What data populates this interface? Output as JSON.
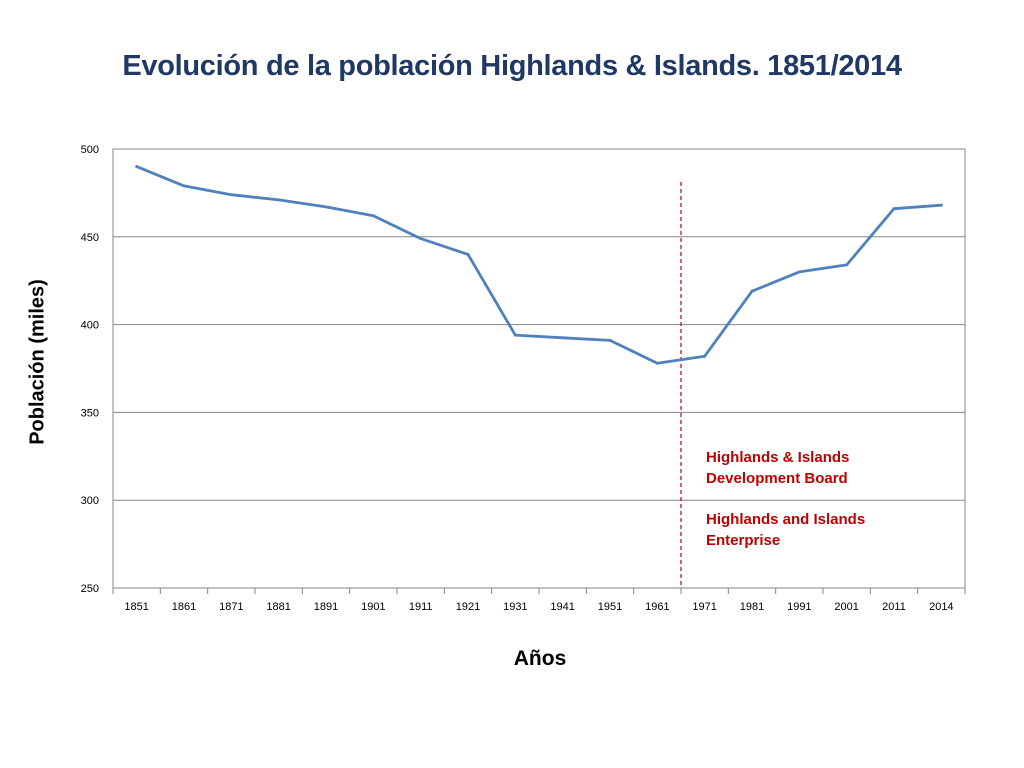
{
  "chart_data": {
    "type": "line",
    "title": "Evolución de la población Highlands & Islands. 1851/2014",
    "xlabel": "Años",
    "ylabel": "Población (miles)",
    "categories": [
      "1851",
      "1861",
      "1871",
      "1881",
      "1891",
      "1901",
      "1911",
      "1921",
      "1931",
      "1941",
      "1951",
      "1961",
      "1971",
      "1981",
      "1991",
      "2001",
      "2011",
      "2014"
    ],
    "series": [
      {
        "values": [
          490,
          479,
          474,
          471,
          467,
          462,
          449,
          440,
          394,
          392.5,
          391,
          378,
          382,
          419,
          430,
          434,
          466,
          468
        ],
        "color": "#4f81bd"
      }
    ],
    "ylim": [
      250,
      500
    ],
    "yticks": [
      "250",
      "300",
      "350",
      "400",
      "450",
      "500"
    ],
    "grid": true,
    "marker_line": {
      "between": [
        "1961",
        "1971"
      ],
      "style": "dashed",
      "color": "#c00000"
    },
    "annotations": [
      "Highlands & Islands",
      "Development Board",
      "Highlands and Islands",
      "Enterprise"
    ],
    "annotation_color": "#c00000"
  }
}
